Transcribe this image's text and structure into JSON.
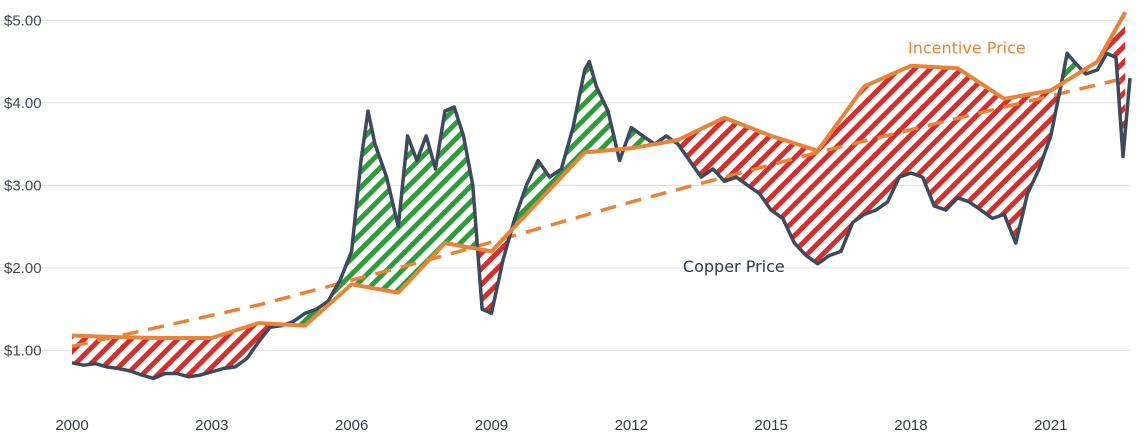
{
  "chart_data": {
    "type": "line",
    "title": "",
    "xlabel": "",
    "ylabel": "",
    "xlim": [
      2000,
      2022.7
    ],
    "ylim": [
      0.35,
      5.15
    ],
    "y_ticks": [
      {
        "value": 1.0,
        "label": "$1.00"
      },
      {
        "value": 2.0,
        "label": "$2.00"
      },
      {
        "value": 3.0,
        "label": "$3.00"
      },
      {
        "value": 4.0,
        "label": "$4.00"
      },
      {
        "value": 5.0,
        "label": "$5.00"
      }
    ],
    "x_ticks": [
      {
        "value": 2000,
        "label": "2000"
      },
      {
        "value": 2003,
        "label": "2003"
      },
      {
        "value": 2006,
        "label": "2006"
      },
      {
        "value": 2009,
        "label": "2009"
      },
      {
        "value": 2012,
        "label": "2012"
      },
      {
        "value": 2015,
        "label": "2015"
      },
      {
        "value": 2018,
        "label": "2018"
      },
      {
        "value": 2021,
        "label": "2021"
      }
    ],
    "grid": "horizontal",
    "colors": {
      "copper": "#3d4a5c",
      "incentive": "#e8833a",
      "trend": "#e8833a",
      "hatch_above": "#2e9c3c",
      "hatch_below": "#d32f2f",
      "grid": "#dddddd"
    },
    "series": [
      {
        "name": "Copper Price",
        "color": "#3d4a5c",
        "x": [
          2000,
          2000.25,
          2000.5,
          2000.75,
          2001,
          2001.25,
          2001.5,
          2001.75,
          2002,
          2002.25,
          2002.5,
          2002.75,
          2003,
          2003.25,
          2003.5,
          2003.75,
          2004,
          2004.25,
          2004.5,
          2004.75,
          2005,
          2005.25,
          2005.5,
          2005.75,
          2006,
          2006.2,
          2006.35,
          2006.5,
          2006.75,
          2007,
          2007.2,
          2007.4,
          2007.6,
          2007.8,
          2008,
          2008.2,
          2008.4,
          2008.6,
          2008.8,
          2009,
          2009.25,
          2009.5,
          2009.75,
          2010,
          2010.25,
          2010.5,
          2010.75,
          2011,
          2011.1,
          2011.25,
          2011.5,
          2011.75,
          2012,
          2012.25,
          2012.5,
          2012.75,
          2013,
          2013.25,
          2013.5,
          2013.75,
          2014,
          2014.25,
          2014.5,
          2014.75,
          2015,
          2015.25,
          2015.5,
          2015.75,
          2016,
          2016.25,
          2016.5,
          2016.75,
          2017,
          2017.25,
          2017.5,
          2017.75,
          2018,
          2018.25,
          2018.5,
          2018.75,
          2019,
          2019.25,
          2019.5,
          2019.75,
          2020,
          2020.25,
          2020.5,
          2020.75,
          2021,
          2021.25,
          2021.35,
          2021.5,
          2021.75,
          2022,
          2022.2,
          2022.4,
          2022.55,
          2022.7
        ],
        "values": [
          0.85,
          0.82,
          0.84,
          0.8,
          0.78,
          0.75,
          0.7,
          0.66,
          0.72,
          0.72,
          0.68,
          0.7,
          0.74,
          0.78,
          0.8,
          0.9,
          1.1,
          1.28,
          1.3,
          1.35,
          1.45,
          1.5,
          1.6,
          1.85,
          2.2,
          3.3,
          3.9,
          3.5,
          3.1,
          2.5,
          3.6,
          3.3,
          3.6,
          3.2,
          3.9,
          3.95,
          3.6,
          3.0,
          1.5,
          1.45,
          2.1,
          2.6,
          3.0,
          3.3,
          3.1,
          3.2,
          3.7,
          4.4,
          4.5,
          4.2,
          3.9,
          3.3,
          3.7,
          3.6,
          3.5,
          3.6,
          3.5,
          3.3,
          3.1,
          3.2,
          3.05,
          3.1,
          3.0,
          2.9,
          2.7,
          2.6,
          2.3,
          2.15,
          2.05,
          2.15,
          2.2,
          2.55,
          2.65,
          2.7,
          2.8,
          3.1,
          3.15,
          3.1,
          2.75,
          2.7,
          2.85,
          2.8,
          2.7,
          2.6,
          2.65,
          2.3,
          2.9,
          3.2,
          3.6,
          4.3,
          4.6,
          4.5,
          4.35,
          4.4,
          4.6,
          4.55,
          3.35,
          4.3
        ]
      },
      {
        "name": "Incentive Price",
        "color": "#e8833a",
        "x": [
          2000,
          2001,
          2002,
          2003,
          2004,
          2005,
          2006,
          2007,
          2008,
          2009,
          2010,
          2011,
          2012,
          2013,
          2014,
          2015,
          2016,
          2017,
          2018,
          2019,
          2020,
          2021,
          2022,
          2022.6
        ],
        "values": [
          1.18,
          1.16,
          1.15,
          1.15,
          1.33,
          1.3,
          1.8,
          1.7,
          2.3,
          2.2,
          2.8,
          3.4,
          3.45,
          3.55,
          3.82,
          3.6,
          3.42,
          4.2,
          4.45,
          4.42,
          4.05,
          4.15,
          4.5,
          5.1
        ]
      },
      {
        "name": "",
        "style": "dashed",
        "color": "#e8833a",
        "x": [
          2000,
          2004,
          2008,
          2012,
          2016,
          2020,
          2022.6
        ],
        "values": [
          1.05,
          1.55,
          2.15,
          2.8,
          3.4,
          3.95,
          4.3
        ]
      }
    ],
    "annotations": [
      {
        "text": "Incentive Price",
        "x": 2019.2,
        "y": 4.6,
        "color": "#e8833a"
      },
      {
        "text": "Copper Price",
        "x": 2014.2,
        "y": 1.95,
        "color": "#2d3a4d"
      }
    ]
  }
}
